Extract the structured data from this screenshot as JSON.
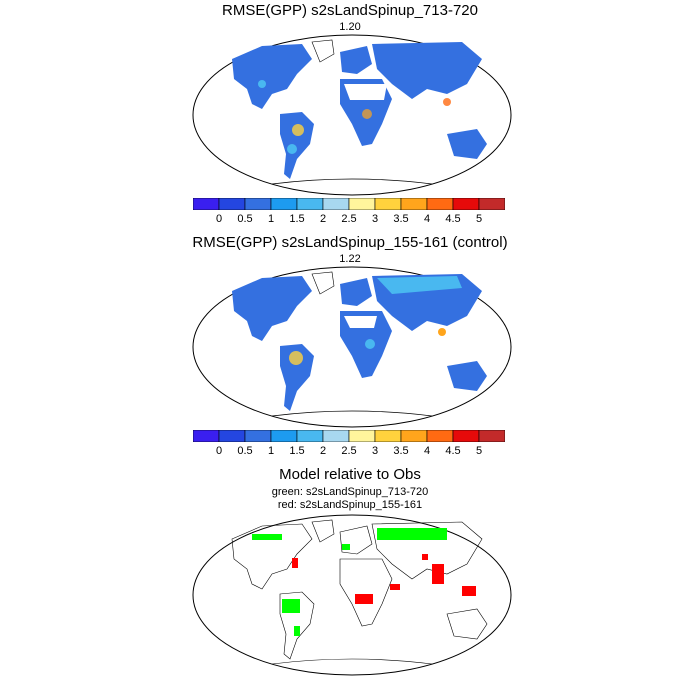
{
  "panels": [
    {
      "title": "RMSE(GPP) s2sLandSpinup_713-720",
      "value": "1.20"
    },
    {
      "title": "RMSE(GPP) s2sLandSpinup_155-161 (control)",
      "value": "1.22"
    }
  ],
  "comparison": {
    "title": "Model relative to Obs",
    "line1": "green: s2sLandSpinup_713-720",
    "line2": "red: s2sLandSpinup_155-161"
  },
  "colorbar": {
    "labels": [
      "0",
      "0.5",
      "1",
      "1.5",
      "2",
      "2.5",
      "3",
      "3.5",
      "4",
      "4.5",
      "5"
    ],
    "colors": [
      "#3a1ff0",
      "#2446e0",
      "#3470e0",
      "#1d9bf0",
      "#49b8f0",
      "#a8d8f0",
      "#fff59c",
      "#ffd23d",
      "#ffa51c",
      "#ff6a12",
      "#e60a0a",
      "#c32a2a"
    ]
  },
  "map_colors": {
    "ocean": "#ffffff",
    "low": "#3470e0",
    "mid": "#49b8f0",
    "high": "#ffa51c",
    "green": "#00ff00",
    "red": "#ff0000"
  }
}
